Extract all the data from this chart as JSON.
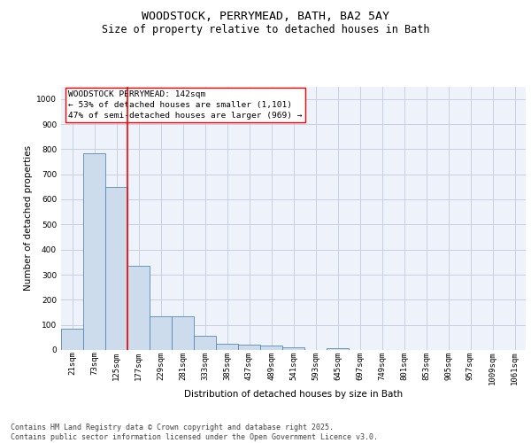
{
  "title1": "WOODSTOCK, PERRYMEAD, BATH, BA2 5AY",
  "title2": "Size of property relative to detached houses in Bath",
  "xlabel": "Distribution of detached houses by size in Bath",
  "ylabel": "Number of detached properties",
  "categories": [
    "21sqm",
    "73sqm",
    "125sqm",
    "177sqm",
    "229sqm",
    "281sqm",
    "333sqm",
    "385sqm",
    "437sqm",
    "489sqm",
    "541sqm",
    "593sqm",
    "645sqm",
    "697sqm",
    "749sqm",
    "801sqm",
    "853sqm",
    "905sqm",
    "957sqm",
    "1009sqm",
    "1061sqm"
  ],
  "values": [
    83,
    785,
    648,
    335,
    133,
    133,
    58,
    25,
    22,
    17,
    10,
    0,
    8,
    0,
    0,
    0,
    0,
    0,
    0,
    0,
    0
  ],
  "bar_color": "#ccdcec",
  "bar_edge_color": "#5588bb",
  "grid_color": "#c8d0e0",
  "background_color": "#eef2fa",
  "vline_color": "red",
  "vline_pos": 2.5,
  "annotation_text_line1": "WOODSTOCK PERRYMEAD: 142sqm",
  "annotation_text_line2": "← 53% of detached houses are smaller (1,101)",
  "annotation_text_line3": "47% of semi-detached houses are larger (969) →",
  "ylim": [
    0,
    1050
  ],
  "yticks": [
    0,
    100,
    200,
    300,
    400,
    500,
    600,
    700,
    800,
    900,
    1000
  ],
  "footer_text": "Contains HM Land Registry data © Crown copyright and database right 2025.\nContains public sector information licensed under the Open Government Licence v3.0.",
  "title_fontsize": 9.5,
  "subtitle_fontsize": 8.5,
  "axis_label_fontsize": 7.5,
  "tick_fontsize": 6.5,
  "annotation_fontsize": 6.8,
  "footer_fontsize": 6.0,
  "ylabel_fontsize": 7.5
}
